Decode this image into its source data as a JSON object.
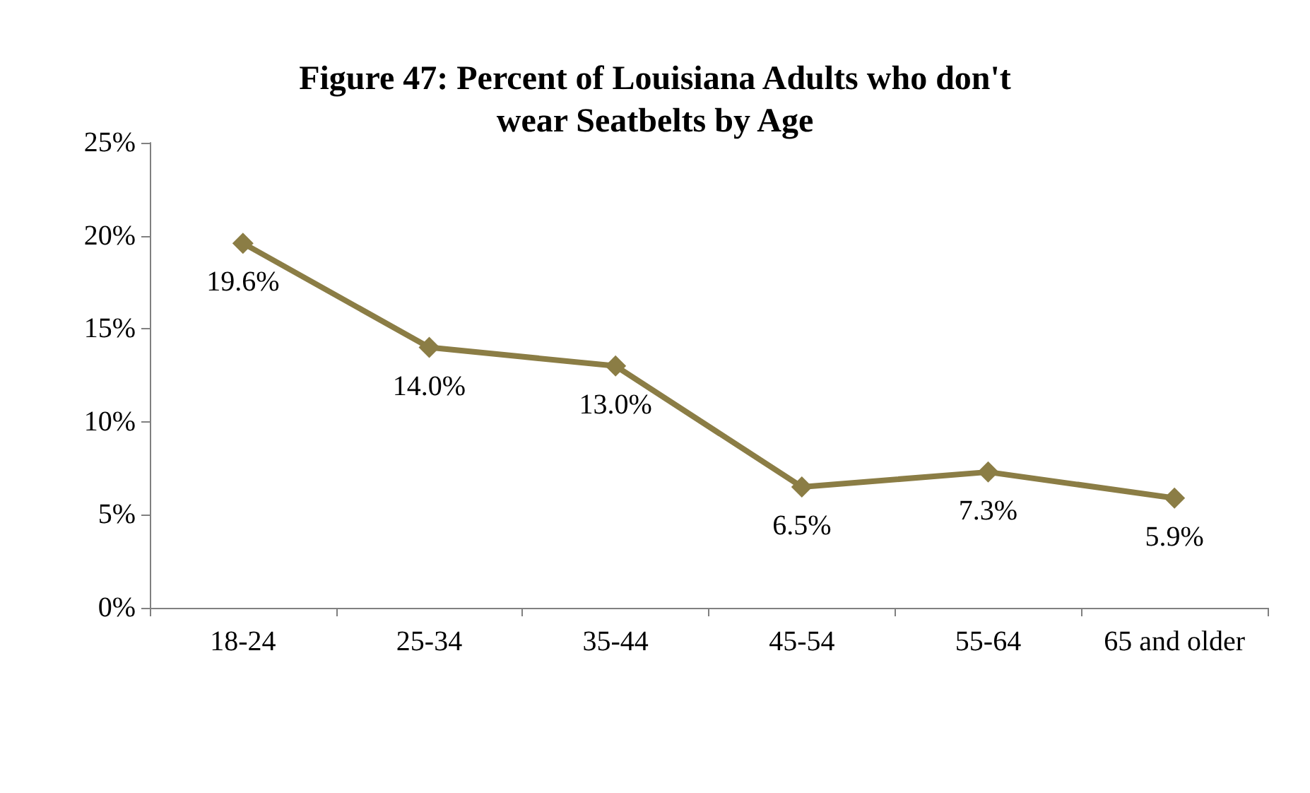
{
  "chart_data": {
    "type": "line",
    "title": "Figure 47: Percent of Louisiana Adults who don't\nwear Seatbelts by Age",
    "categories": [
      "18-24",
      "25-34",
      "35-44",
      "45-54",
      "55-64",
      "65 and older"
    ],
    "series": [
      {
        "color": "#8b7d45",
        "values": [
          19.6,
          14.0,
          13.0,
          6.5,
          7.3,
          5.9
        ],
        "value_labels": [
          "19.6%",
          "14.0%",
          "13.0%",
          "6.5%",
          "7.3%",
          "5.9%"
        ]
      }
    ],
    "ylim": [
      0,
      25
    ],
    "yticks": [
      {
        "value": 0,
        "label": "0%"
      },
      {
        "value": 5,
        "label": "5%"
      },
      {
        "value": 10,
        "label": "10%"
      },
      {
        "value": 15,
        "label": "15%"
      },
      {
        "value": 20,
        "label": "20%"
      },
      {
        "value": 25,
        "label": "25%"
      }
    ],
    "grid": false,
    "marker": "diamond",
    "line_style": "solid"
  }
}
